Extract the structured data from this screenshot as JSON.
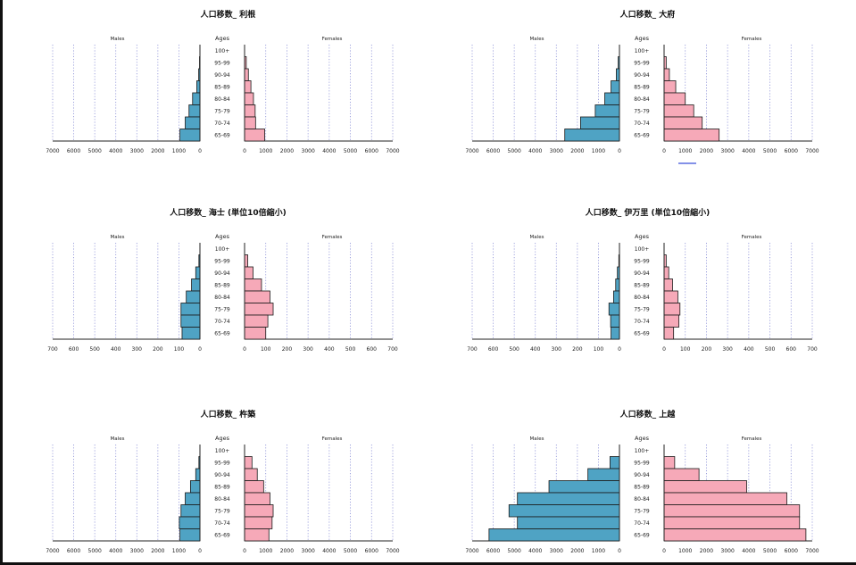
{
  "chart_data": [
    {
      "type": "bar",
      "title": "人口移数_ 利根",
      "males_label": "Males",
      "females_label": "Females",
      "ages_label": "Ages",
      "categories": [
        "100+",
        "95-99",
        "90-94",
        "85-89",
        "80-84",
        "75-79",
        "70-74",
        "65-69"
      ],
      "ticks": [
        "7000",
        "6000",
        "5000",
        "4000",
        "3000",
        "2000",
        "1000",
        "0"
      ],
      "xlim": [
        0,
        7000
      ],
      "series": [
        {
          "name": "Males",
          "values": [
            0,
            20,
            60,
            150,
            350,
            520,
            700,
            950
          ]
        },
        {
          "name": "Females",
          "values": [
            0,
            80,
            180,
            300,
            420,
            500,
            520,
            950
          ]
        }
      ]
    },
    {
      "type": "bar",
      "title": "人口移数_ 大府",
      "males_label": "Males",
      "females_label": "Females",
      "ages_label": "Ages",
      "categories": [
        "100+",
        "95-99",
        "90-94",
        "85-89",
        "80-84",
        "75-79",
        "70-74",
        "65-69"
      ],
      "ticks": [
        "7000",
        "6000",
        "5000",
        "4000",
        "3000",
        "2000",
        "1000",
        "0"
      ],
      "xlim": [
        0,
        7000
      ],
      "series": [
        {
          "name": "Males",
          "values": [
            0,
            60,
            150,
            400,
            700,
            1150,
            1850,
            2600
          ]
        },
        {
          "name": "Females",
          "values": [
            0,
            100,
            250,
            550,
            1000,
            1400,
            1800,
            2600
          ]
        }
      ]
    },
    {
      "type": "bar",
      "title": "人口移数_ 海士 (単位10倍縮小)",
      "males_label": "Males",
      "females_label": "Females",
      "ages_label": "Ages",
      "categories": [
        "100+",
        "95-99",
        "90-94",
        "85-89",
        "80-84",
        "75-79",
        "70-74",
        "65-69"
      ],
      "ticks": [
        "700",
        "600",
        "500",
        "400",
        "300",
        "200",
        "100",
        "0"
      ],
      "xlim": [
        0,
        700
      ],
      "series": [
        {
          "name": "Males",
          "values": [
            0,
            5,
            20,
            40,
            65,
            90,
            90,
            85
          ]
        },
        {
          "name": "Females",
          "values": [
            0,
            15,
            40,
            80,
            120,
            135,
            110,
            100
          ]
        }
      ]
    },
    {
      "type": "bar",
      "title": "人口移数_ 伊万里 (単位10倍縮小)",
      "males_label": "Males",
      "females_label": "Females",
      "ages_label": "Ages",
      "categories": [
        "100+",
        "95-99",
        "90-94",
        "85-89",
        "80-84",
        "75-79",
        "70-74",
        "65-69"
      ],
      "ticks": [
        "700",
        "600",
        "500",
        "400",
        "300",
        "200",
        "100",
        "0"
      ],
      "xlim": [
        0,
        700
      ],
      "series": [
        {
          "name": "Males",
          "values": [
            0,
            3,
            10,
            18,
            28,
            50,
            42,
            40
          ]
        },
        {
          "name": "Females",
          "values": [
            0,
            10,
            22,
            40,
            65,
            75,
            70,
            45
          ]
        }
      ]
    },
    {
      "type": "bar",
      "title": "人口移数_ 杵築",
      "males_label": "Males",
      "females_label": "Females",
      "ages_label": "Ages",
      "categories": [
        "100+",
        "95-99",
        "90-94",
        "85-89",
        "80-84",
        "75-79",
        "70-74",
        "65-69"
      ],
      "ticks": [
        "7000",
        "6000",
        "5000",
        "4000",
        "3000",
        "2000",
        "1000",
        "0"
      ],
      "xlim": [
        0,
        7000
      ],
      "series": [
        {
          "name": "Males",
          "values": [
            0,
            50,
            200,
            450,
            700,
            900,
            980,
            950
          ]
        },
        {
          "name": "Females",
          "values": [
            0,
            350,
            600,
            900,
            1200,
            1350,
            1300,
            1150
          ]
        }
      ]
    },
    {
      "type": "bar",
      "title": "人口移数_ 上越",
      "males_label": "Males",
      "females_label": "Females",
      "ages_label": "Ages",
      "categories": [
        "100+",
        "95-99",
        "90-94",
        "85-89",
        "80-84",
        "75-79",
        "70-74",
        "65-69"
      ],
      "ticks": [
        "7000",
        "6000",
        "5000",
        "4000",
        "3000",
        "2000",
        "1000",
        "0"
      ],
      "xlim": [
        0,
        7000
      ],
      "series": [
        {
          "name": "Males",
          "values": [
            0,
            450,
            1500,
            3350,
            4850,
            5250,
            4850,
            6200
          ]
        },
        {
          "name": "Females",
          "values": [
            0,
            500,
            1650,
            3900,
            5800,
            6400,
            6400,
            6700
          ]
        }
      ]
    }
  ],
  "style": {
    "male_fill": "#4fa3c4",
    "female_fill": "#f6a9b8",
    "bar_stroke": "#1a1a1a",
    "grid_color": "#8a8fd6",
    "accent_line": "#3b4fd9"
  }
}
